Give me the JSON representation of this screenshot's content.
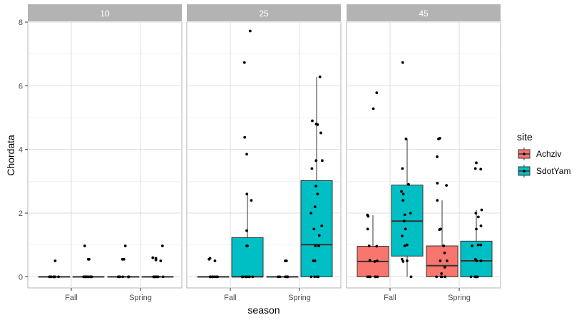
{
  "chart_data": {
    "type": "boxplot",
    "xlabel": "season",
    "ylabel": "Chordata",
    "ylim": [
      -0.35,
      8.0
    ],
    "y_ticks": [
      0,
      2,
      4,
      6,
      8
    ],
    "facet_variable": "depth",
    "facets": [
      "10",
      "25",
      "45"
    ],
    "categories": [
      "Fall",
      "Spring"
    ],
    "grid": true,
    "legend": {
      "title": "site",
      "position": "right",
      "entries": [
        {
          "name": "Achziv",
          "color": "#F8766D"
        },
        {
          "name": "SdotYam",
          "color": "#00BFC4"
        }
      ]
    },
    "boxes": [
      {
        "facet": "10",
        "season": "Fall",
        "site": "Achziv",
        "q1": 0,
        "median": 0,
        "q3": 0,
        "whisker_low": 0,
        "whisker_high": 0,
        "points": [
          0,
          0,
          0,
          0,
          0,
          0,
          0,
          0,
          0.5
        ]
      },
      {
        "facet": "10",
        "season": "Fall",
        "site": "SdotYam",
        "q1": 0,
        "median": 0,
        "q3": 0,
        "whisker_low": 0,
        "whisker_high": 0,
        "points": [
          0,
          0,
          0,
          0,
          0,
          0,
          0,
          0,
          0,
          0.55,
          0.55,
          0.97
        ]
      },
      {
        "facet": "10",
        "season": "Spring",
        "site": "Achziv",
        "q1": 0,
        "median": 0,
        "q3": 0,
        "whisker_low": 0,
        "whisker_high": 0,
        "points": [
          0,
          0,
          0,
          0,
          0,
          0,
          0,
          0.55,
          0.55,
          0.97
        ]
      },
      {
        "facet": "10",
        "season": "Spring",
        "site": "SdotYam",
        "q1": 0,
        "median": 0,
        "q3": 0,
        "whisker_low": 0,
        "whisker_high": 0,
        "points": [
          0,
          0,
          0,
          0,
          0,
          0,
          0,
          0,
          0.5,
          0.53,
          0.58,
          0.6,
          0.97
        ]
      },
      {
        "facet": "25",
        "season": "Fall",
        "site": "Achziv",
        "q1": 0,
        "median": 0,
        "q3": 0,
        "whisker_low": 0,
        "whisker_high": 0,
        "points": [
          0,
          0,
          0,
          0,
          0,
          0,
          0,
          0.5,
          0.55,
          0.58
        ]
      },
      {
        "facet": "25",
        "season": "Fall",
        "site": "SdotYam",
        "q1": 0,
        "median": 0,
        "q3": 1.23,
        "whisker_low": 0,
        "whisker_high": 2.6,
        "points": [
          0,
          0,
          0,
          0,
          0,
          0,
          0,
          0,
          0.97,
          0.97,
          1.45,
          2.4,
          2.6,
          3.85,
          4.38,
          6.73,
          7.72
        ]
      },
      {
        "facet": "25",
        "season": "Spring",
        "site": "Achziv",
        "q1": 0,
        "median": 0,
        "q3": 0,
        "whisker_low": 0,
        "whisker_high": 0,
        "points": [
          0,
          0,
          0,
          0,
          0,
          0,
          0.5,
          0.5
        ]
      },
      {
        "facet": "25",
        "season": "Spring",
        "site": "SdotYam",
        "q1": 0,
        "median": 1.01,
        "q3": 3.02,
        "whisker_low": 0,
        "whisker_high": 6.28,
        "points": [
          0,
          0,
          0,
          0,
          0.5,
          0.5,
          0.97,
          0.97,
          1.3,
          1.5,
          1.6,
          2.0,
          2.2,
          2.6,
          2.85,
          3.4,
          3.65,
          3.65,
          4.52,
          4.78,
          4.8,
          4.9,
          6.28
        ]
      },
      {
        "facet": "45",
        "season": "Fall",
        "site": "Achziv",
        "q1": 0,
        "median": 0.48,
        "q3": 0.96,
        "whisker_low": 0,
        "whisker_high": 1.94,
        "points": [
          0,
          0,
          0,
          0,
          0,
          0,
          0.48,
          0.5,
          0.52,
          0.96,
          0.97,
          1.5,
          1.9,
          1.94,
          5.28,
          5.78
        ]
      },
      {
        "facet": "45",
        "season": "Fall",
        "site": "SdotYam",
        "q1": 0.65,
        "median": 1.75,
        "q3": 2.88,
        "whisker_low": 0,
        "whisker_high": 4.33,
        "points": [
          0,
          0.48,
          0.5,
          0.55,
          0.97,
          1.0,
          1.28,
          1.5,
          1.75,
          1.95,
          2.0,
          2.4,
          2.6,
          2.68,
          2.9,
          3.4,
          4.33,
          6.73
        ]
      },
      {
        "facet": "45",
        "season": "Spring",
        "site": "Achziv",
        "q1": 0,
        "median": 0.35,
        "q3": 0.97,
        "whisker_low": 0,
        "whisker_high": 2.4,
        "points": [
          0,
          0,
          0,
          0,
          0.1,
          0.3,
          0.5,
          0.5,
          0.75,
          0.97,
          1.48,
          1.5,
          2.4,
          2.87,
          2.94,
          3.77,
          4.33,
          4.35
        ]
      },
      {
        "facet": "45",
        "season": "Spring",
        "site": "SdotYam",
        "q1": 0,
        "median": 0.5,
        "q3": 1.12,
        "whisker_low": 0,
        "whisker_high": 2.1,
        "points": [
          0,
          0,
          0,
          0,
          0,
          0.5,
          0.5,
          0.55,
          0.97,
          1.0,
          1.0,
          1.5,
          1.6,
          1.88,
          2.0,
          2.1,
          3.38,
          3.4,
          3.58
        ]
      }
    ]
  }
}
